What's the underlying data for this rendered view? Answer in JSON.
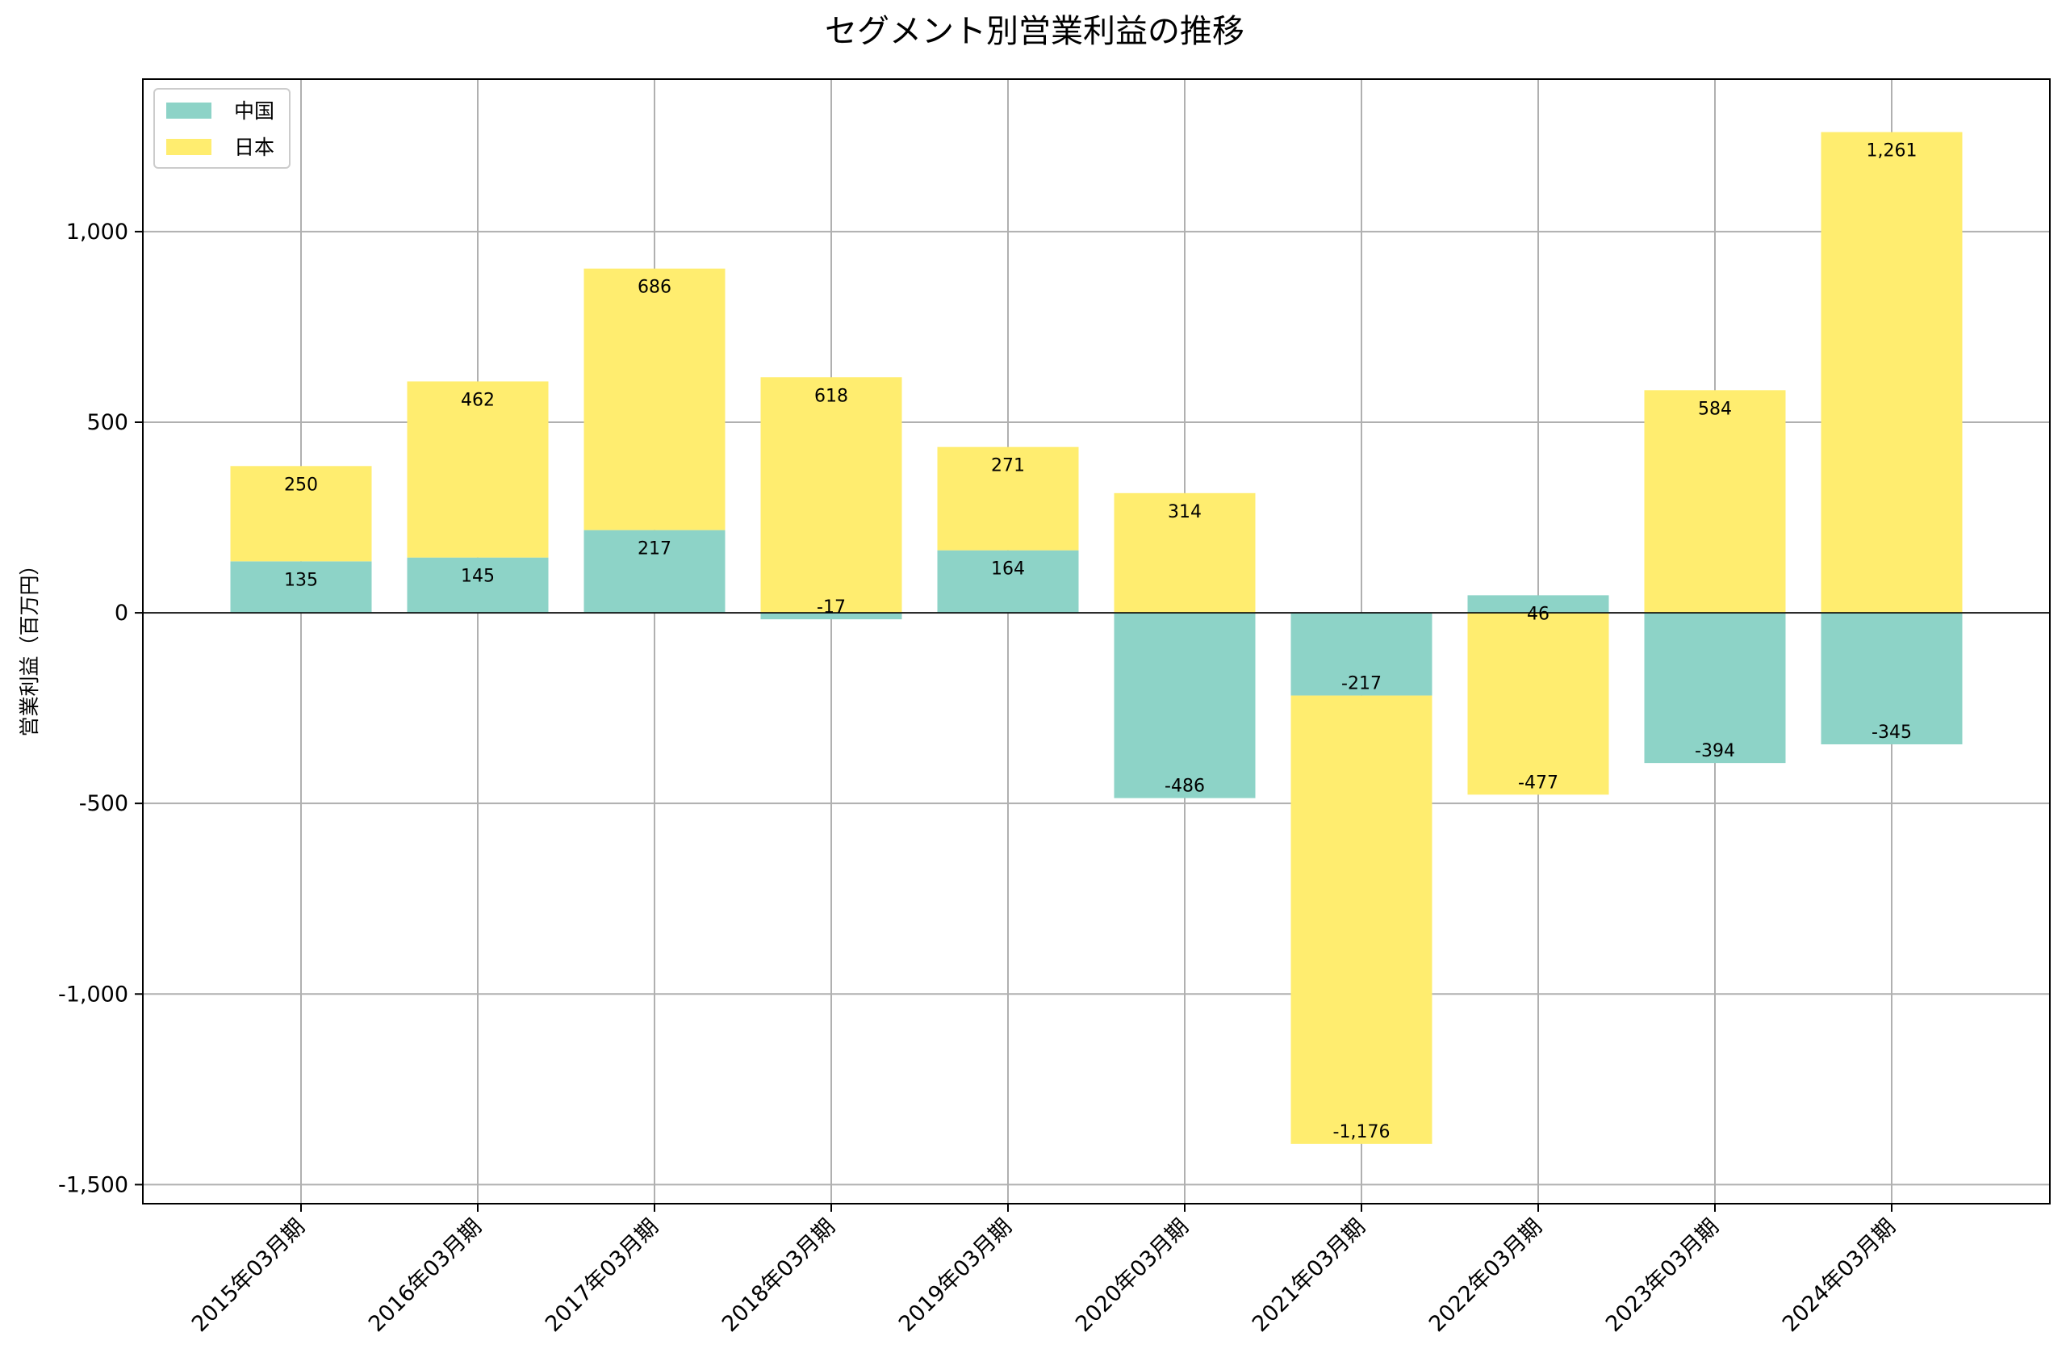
{
  "chart_data": {
    "type": "bar",
    "stacked": true,
    "title": "セグメント別営業利益の推移",
    "xlabel": "",
    "ylabel": "営業利益（百万円）",
    "ylim": [
      -1550,
      1400
    ],
    "yticks": [
      -1500,
      -1000,
      -500,
      0,
      500,
      1000
    ],
    "ytick_labels": [
      "-1,500",
      "-1,000",
      "-500",
      "0",
      "500",
      "1,000"
    ],
    "grid": true,
    "legend_position": "top-left",
    "categories": [
      "2015年03月期",
      "2016年03月期",
      "2017年03月期",
      "2018年03月期",
      "2019年03月期",
      "2020年03月期",
      "2021年03月期",
      "2022年03月期",
      "2023年03月期",
      "2024年03月期"
    ],
    "series": [
      {
        "name": "中国",
        "color": "#8dd3c7",
        "values": [
          135,
          145,
          217,
          -17,
          164,
          -486,
          -217,
          46,
          -394,
          -345
        ],
        "labels": [
          "135",
          "145",
          "217",
          "-17",
          "164",
          "-486",
          "-217",
          "46",
          "-394",
          "-345"
        ]
      },
      {
        "name": "日本",
        "color": "#ffed6f",
        "values": [
          250,
          462,
          686,
          618,
          271,
          314,
          -1176,
          -477,
          584,
          1261
        ],
        "labels": [
          "250",
          "462",
          "686",
          "618",
          "271",
          "314",
          "-1,176",
          "-477",
          "584",
          "1,261"
        ]
      }
    ]
  }
}
